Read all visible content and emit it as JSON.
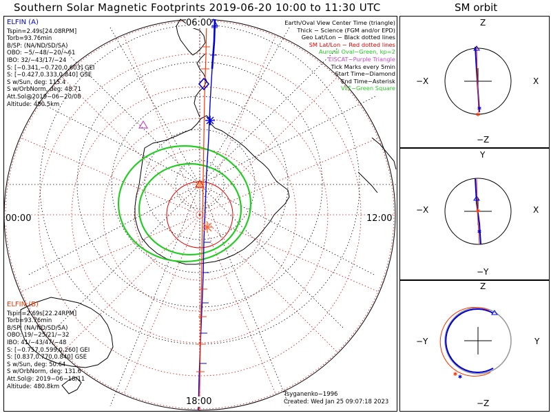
{
  "header": {
    "title": "Southern Solar Magnetic Footprints 2019-06-20 10:00 to 11:30 UTC",
    "orbit_title": "SM orbit"
  },
  "map": {
    "mlt_labels": {
      "top": "06:00",
      "bottom": "18:00",
      "left": "00:00",
      "right": "12:00"
    },
    "colors": {
      "grid_black": "#000000",
      "grid_red": "#e00000",
      "oval": "#22cc22",
      "elfin_a": "#0000dd",
      "elfin_b": "#ff3300",
      "eiscat": "#cc44cc"
    }
  },
  "elfin_a": {
    "title": "ELFIN (A)",
    "lines": [
      "Tspin=2.49s[24.08RPM]",
      "Torb=93.76min",
      "B/SP: (NA/ND/SD/SA)",
      "OBO: −5/−48/−20/−61",
      "IBO: 32/−43/17/−24",
      "S: [−0.341,−0.720,0.603] GEI",
      "S: [−0.427,0.333,0.840] GSE",
      "S w/Sun, deg: 115.4",
      "S w/OrbNorm, deg: 48.71",
      "Att.Sol@2019−06−20/08",
      "Altitude: 480.5km"
    ]
  },
  "elfin_b": {
    "title": "ELFIN (B)",
    "lines": [
      "Tspin=2.69s[22.24RPM]",
      "Torb=93.76min",
      "B/SP: (NA/ND/SD/SA)",
      "OBO: 19/−25/21/−32",
      "IBO: 41/−43/47/−48",
      "S: [−0.757,0.599,0.260] GEI",
      "S: [0.837,0.770,0.840] GSE",
      "S w/Sun, deg: 50.64",
      "S w/OrbNorm, deg: 131.6",
      "Att.Sol@: 2019−06−18/11",
      "Altitude: 480.8km"
    ]
  },
  "legend": [
    {
      "text": "Earth/Oval View Center Time (triangle)",
      "color": "#000000"
    },
    {
      "text": "Thick − Science (FGM and/or EPD)",
      "color": "#000000"
    },
    {
      "text": "Geo Lat/Lon − Black dotted lines",
      "color": "#000000"
    },
    {
      "text": "SM Lat/Lon − Red dotted lines",
      "color": "#e00000"
    },
    {
      "text": "Auroral Oval−Green, kp=2",
      "color": "#22cc22"
    },
    {
      "text": "EISCAT−Purple Triangle",
      "color": "#cc44cc"
    },
    {
      "text": "Tick Marks every 5min",
      "color": "#000000"
    },
    {
      "text": "Start Time−Diamond",
      "color": "#000000"
    },
    {
      "text": "End Time−Asterisk",
      "color": "#000000"
    },
    {
      "text": "VLF−Green Square",
      "color": "#22cc22"
    }
  ],
  "credits": {
    "author": "Tsyganenko−1996",
    "created": "Created: Wed Jan 25 09:07:18 2023"
  },
  "orbit_panels": [
    {
      "top": "Z",
      "bottom": "−Z",
      "left": "−X",
      "right": "X"
    },
    {
      "top": "Y",
      "bottom": "−Y",
      "left": "−X",
      "right": "X"
    },
    {
      "top": "Z",
      "bottom": "−Z",
      "left": "−Y",
      "right": "Y"
    }
  ]
}
